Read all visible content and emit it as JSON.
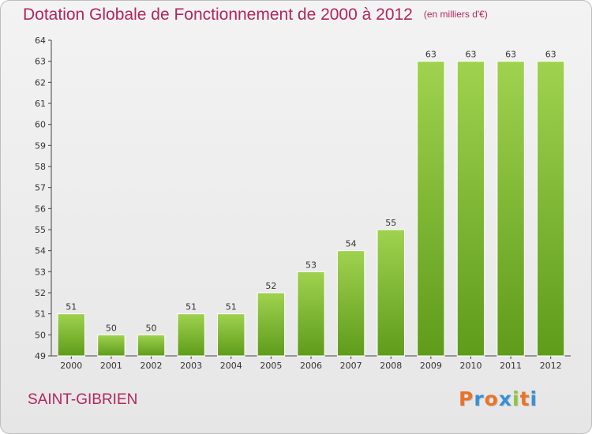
{
  "header": {
    "title": "Dotation Globale de Fonctionnement de 2000 à 2012",
    "unit": "(en milliers d'€)"
  },
  "footer": {
    "commune": "SAINT-GIBRIEN",
    "logo_letters": [
      "P",
      "r",
      "o",
      "x",
      "i",
      "t",
      "i"
    ],
    "logo_colors": [
      "#e8742a",
      "#3a8fd6",
      "#e8742a",
      "#3a8fd6",
      "#8dc63f",
      "#e8742a",
      "#3a8fd6"
    ]
  },
  "chart_data": {
    "type": "bar",
    "title": "Dotation Globale de Fonctionnement de 2000 à 2012",
    "subtitle": "(en milliers d'€)",
    "categories": [
      "2000",
      "2001",
      "2002",
      "2003",
      "2004",
      "2005",
      "2006",
      "2007",
      "2008",
      "2009",
      "2010",
      "2011",
      "2012"
    ],
    "values": [
      51,
      50,
      50,
      51,
      51,
      52,
      53,
      54,
      55,
      63,
      63,
      63,
      63
    ],
    "ylim": [
      49,
      64
    ],
    "yticks": [
      49,
      50,
      51,
      52,
      53,
      54,
      55,
      56,
      57,
      58,
      59,
      60,
      61,
      62,
      63,
      64
    ],
    "xlabel": "",
    "ylabel": "",
    "grid": false,
    "bar_color": "#8dc63f",
    "bar_color_dark": "#5e9c1a"
  }
}
